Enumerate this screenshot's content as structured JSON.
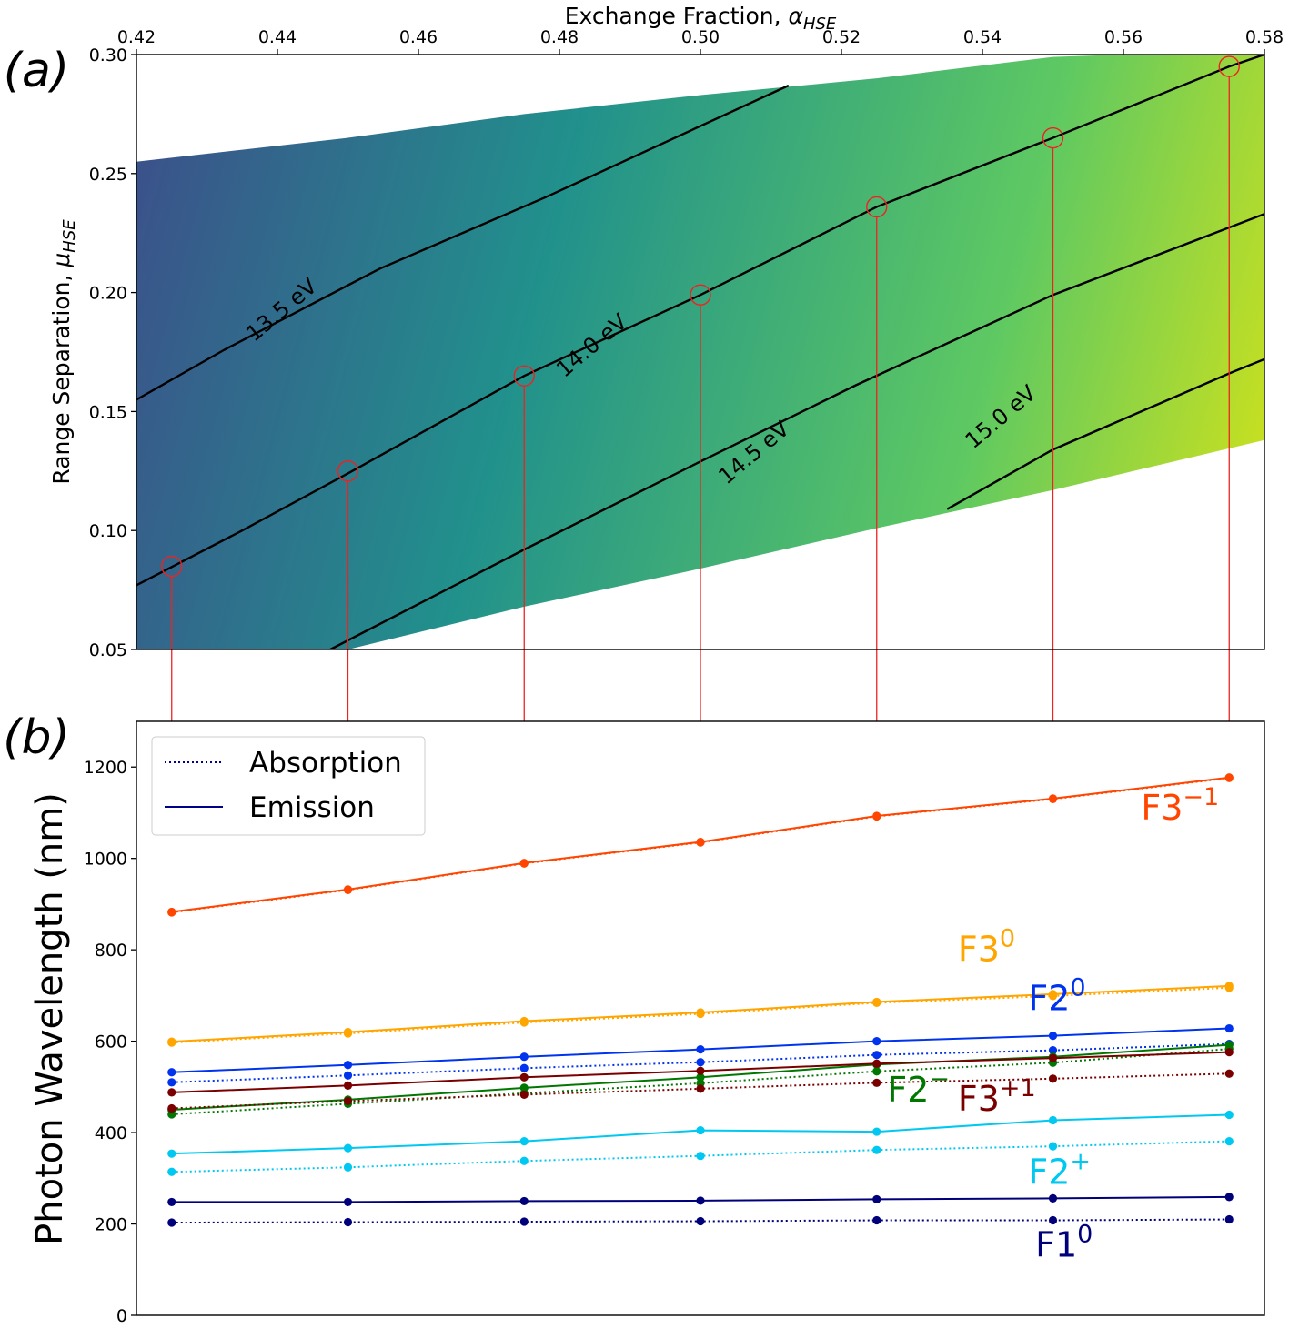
{
  "chart_data": [
    {
      "type": "heatmap",
      "panel_label": "(a)",
      "title": "",
      "xlabel": "Exchange Fraction, α_HSE",
      "ylabel": "Range Separation, μ_HSE",
      "xlabel_text": "Exchange Fraction, ",
      "xlabel_symbol": "α",
      "xlabel_sub": "HSE",
      "ylabel_text": "Range Separation, ",
      "ylabel_symbol": "μ",
      "ylabel_sub": "HSE",
      "xlim": [
        0.42,
        0.58
      ],
      "ylim": [
        0.05,
        0.3
      ],
      "xticks": [
        "0.42",
        "0.44",
        "0.46",
        "0.48",
        "0.50",
        "0.52",
        "0.54",
        "0.56",
        "0.58"
      ],
      "yticks": [
        "0.05",
        "0.10",
        "0.15",
        "0.20",
        "0.25",
        "0.30"
      ],
      "domain_upper": [
        [
          0.42,
          0.255
        ],
        [
          0.45,
          0.265
        ],
        [
          0.475,
          0.275
        ],
        [
          0.5,
          0.283
        ],
        [
          0.525,
          0.29
        ],
        [
          0.55,
          0.299
        ],
        [
          0.58,
          0.302
        ]
      ],
      "domain_lower": [
        [
          0.42,
          0.05
        ],
        [
          0.45,
          0.05
        ],
        [
          0.475,
          0.068
        ],
        [
          0.5,
          0.084
        ],
        [
          0.525,
          0.101
        ],
        [
          0.55,
          0.117
        ],
        [
          0.58,
          0.138
        ]
      ],
      "contours": [
        {
          "label": "13.5 eV",
          "points": [
            [
              0.42,
              0.155
            ],
            [
              0.4325,
              0.176
            ],
            [
              0.4545,
              0.21
            ],
            [
              0.478,
              0.24
            ],
            [
              0.5125,
              0.287
            ]
          ]
        },
        {
          "label": "14.0 eV",
          "points": [
            [
              0.42,
              0.077
            ],
            [
              0.435,
              0.1
            ],
            [
              0.45,
              0.124
            ],
            [
              0.475,
              0.165
            ],
            [
              0.5,
              0.199
            ],
            [
              0.525,
              0.236
            ],
            [
              0.55,
              0.265
            ],
            [
              0.575,
              0.295
            ],
            [
              0.58,
              0.3
            ]
          ]
        },
        {
          "label": "14.5 eV",
          "points": [
            [
              0.4475,
              0.05
            ],
            [
              0.475,
              0.092
            ],
            [
              0.5,
              0.129
            ],
            [
              0.522,
              0.161
            ],
            [
              0.55,
              0.199
            ],
            [
              0.58,
              0.233
            ]
          ]
        },
        {
          "label": "15.0 eV",
          "points": [
            [
              0.535,
              0.109
            ],
            [
              0.55,
              0.134
            ],
            [
              0.575,
              0.166
            ],
            [
              0.58,
              0.172
            ]
          ]
        }
      ],
      "contour_labels": [
        {
          "text": "13.5 eV",
          "x": 0.4405,
          "y": 0.193
        },
        {
          "text": "14.0 eV",
          "x": 0.4845,
          "y": 0.178
        },
        {
          "text": "14.5 eV",
          "x": 0.5075,
          "y": 0.133
        },
        {
          "text": "15.0 eV",
          "x": 0.5425,
          "y": 0.148
        }
      ],
      "markers": [
        [
          0.425,
          0.085
        ],
        [
          0.45,
          0.125
        ],
        [
          0.475,
          0.165
        ],
        [
          0.5,
          0.199
        ],
        [
          0.525,
          0.236
        ],
        [
          0.55,
          0.265
        ],
        [
          0.575,
          0.295
        ]
      ],
      "colormap": [
        "#3b528b",
        "#21918c",
        "#5ec962",
        "#c8e020"
      ],
      "energy_range": [
        13.0,
        15.3
      ]
    },
    {
      "type": "line",
      "panel_label": "(b)",
      "title": "",
      "xlabel": "",
      "ylabel": "Photon Wavelength (nm)",
      "xlim": [
        0.42,
        0.58
      ],
      "ylim": [
        0,
        1300
      ],
      "yticks": [
        "0",
        "200",
        "400",
        "600",
        "800",
        "1000",
        "1200"
      ],
      "x": [
        0.425,
        0.45,
        0.475,
        0.5,
        0.525,
        0.55,
        0.575
      ],
      "legend": {
        "position": "top-left",
        "entries": [
          "Absorption",
          "Emission"
        ],
        "line_color": "#00008b"
      },
      "series": [
        {
          "name": "F3⁻¹",
          "label": "F3",
          "charge": "−1",
          "color": "#ff4500",
          "emission": [
            883,
            932,
            990,
            1036,
            1093,
            1131,
            1177
          ],
          "absorption": [
            882,
            931,
            989,
            1035,
            1092,
            1130,
            1176
          ],
          "label_pos": [
            0.5625,
            1085
          ],
          "label_size": 38
        },
        {
          "name": "F3⁰",
          "label": "F3",
          "charge": "0",
          "color": "#ffa500",
          "emission": [
            599,
            620,
            644,
            663,
            686,
            703,
            721
          ],
          "absorption": [
            597,
            617,
            641,
            660,
            684,
            699,
            717
          ],
          "label_pos": [
            0.5365,
            775
          ],
          "label_size": 38
        },
        {
          "name": "F2⁰",
          "label": "F2",
          "charge": "0",
          "color": "#0033ee",
          "emission": [
            532,
            548,
            566,
            582,
            600,
            612,
            628
          ],
          "absorption": [
            510,
            525,
            541,
            554,
            570,
            580,
            594
          ],
          "label_pos": [
            0.5465,
            668
          ],
          "label_size": 38
        },
        {
          "name": "F2⁻",
          "label": "F2",
          "charge": "−",
          "color": "#007700",
          "emission": [
            450,
            472,
            498,
            521,
            549,
            566,
            592
          ],
          "absorption": [
            440,
            463,
            486,
            508,
            534,
            553,
            583
          ],
          "label_pos": [
            0.5265,
            468
          ],
          "label_size": 38
        },
        {
          "name": "F3⁺¹",
          "label": "F3",
          "charge": "+1",
          "color": "#7a0000",
          "emission": [
            488,
            503,
            521,
            535,
            551,
            563,
            576
          ],
          "absorption": [
            453,
            469,
            483,
            496,
            509,
            518,
            529
          ],
          "label_pos": [
            0.5365,
            448
          ],
          "label_size": 38
        },
        {
          "name": "F2⁺",
          "label": "F2",
          "charge": "+",
          "color": "#00c8f0",
          "emission": [
            354,
            366,
            381,
            405,
            402,
            427,
            439
          ],
          "absorption": [
            314,
            324,
            338,
            349,
            362,
            370,
            381
          ],
          "label_pos": [
            0.5465,
            288
          ],
          "label_size": 38
        },
        {
          "name": "F1⁰",
          "label": "F1",
          "charge": "0",
          "color": "#00007a",
          "emission": [
            248,
            248,
            250,
            251,
            254,
            256,
            259
          ],
          "absorption": [
            203,
            204,
            205,
            206,
            208,
            208,
            210
          ],
          "label_pos": [
            0.5475,
            128
          ],
          "label_size": 38
        }
      ]
    }
  ]
}
